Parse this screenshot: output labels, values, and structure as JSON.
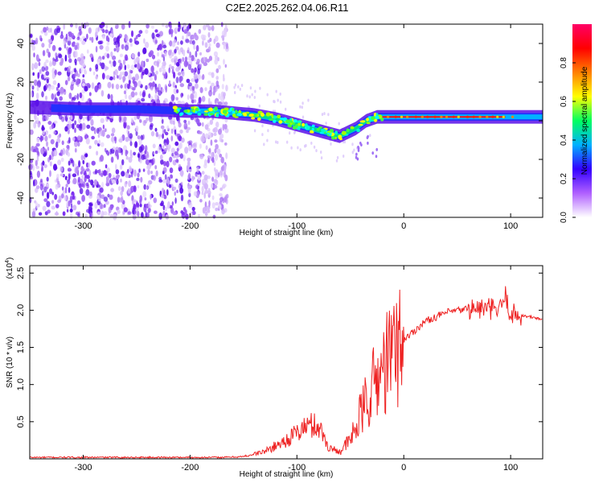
{
  "figure": {
    "title": "C2E2.2025.262.04.06.R11"
  },
  "chart_data": [
    {
      "type": "heatmap",
      "xlabel": "Height of straight line (km)",
      "ylabel": "Frequency (Hz)",
      "xlim": [
        -350,
        130
      ],
      "ylim": [
        -50,
        50
      ],
      "xticks": [
        -300,
        -200,
        -100,
        0,
        100
      ],
      "yticks": [
        -40,
        -20,
        0,
        20,
        40
      ],
      "colorbar": {
        "label": "Normalized spectral amplitude",
        "range": [
          0,
          1
        ],
        "ticks": [
          "0.0",
          "0.2",
          "0.4",
          "0.6",
          "0.8"
        ],
        "colormap": [
          "#ffffff",
          "#b060ff",
          "#3300ff",
          "#00b0ff",
          "#00ff60",
          "#ffff00",
          "#ff8000",
          "#ff0000",
          "#ff0066"
        ]
      },
      "center_trace": {
        "x": [
          -350,
          -300,
          -250,
          -200,
          -180,
          -160,
          -140,
          -120,
          -100,
          -80,
          -60,
          -45,
          -35,
          -25,
          -15,
          0,
          50,
          100,
          130
        ],
        "y": [
          7,
          6,
          6,
          5,
          5,
          4,
          3,
          1,
          -2,
          -5,
          -8,
          -4,
          0,
          2,
          2,
          2,
          2,
          2,
          2
        ]
      },
      "noise_extent_km": [
        -350,
        -170
      ]
    },
    {
      "type": "line",
      "xlabel": "Height of straight line (km)",
      "ylabel": "SNR (10 * v/v)",
      "multiplier_label": "(x10",
      "multiplier_exp": "4",
      "multiplier_suffix": ")",
      "xlim": [
        -350,
        130
      ],
      "ylim": [
        0,
        2.6
      ],
      "xticks": [
        -300,
        -200,
        -100,
        0,
        100
      ],
      "yticks": [
        "0.5",
        "1.0",
        "1.5",
        "2.0",
        "2.5"
      ],
      "color": "#ee2222",
      "series": [
        {
          "name": "SNR",
          "x": [
            -350,
            -250,
            -170,
            -150,
            -130,
            -110,
            -90,
            -80,
            -70,
            -60,
            -50,
            -40,
            -30,
            -20,
            -10,
            0,
            20,
            40,
            60,
            80,
            90,
            95,
            100,
            110,
            130
          ],
          "y": [
            0.02,
            0.02,
            0.02,
            0.03,
            0.1,
            0.25,
            0.45,
            0.45,
            0.15,
            0.1,
            0.25,
            0.6,
            0.95,
            1.2,
            1.45,
            1.6,
            1.85,
            1.97,
            2.02,
            2.02,
            2.0,
            2.2,
            1.95,
            1.93,
            1.88
          ]
        }
      ]
    }
  ]
}
